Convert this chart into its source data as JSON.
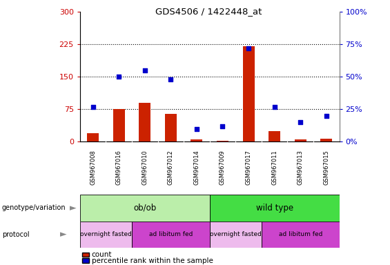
{
  "title": "GDS4506 / 1422448_at",
  "samples": [
    "GSM967008",
    "GSM967016",
    "GSM967010",
    "GSM967012",
    "GSM967014",
    "GSM967009",
    "GSM967017",
    "GSM967011",
    "GSM967013",
    "GSM967015"
  ],
  "counts": [
    20,
    75,
    90,
    65,
    5,
    3,
    220,
    25,
    5,
    7
  ],
  "percentiles": [
    27,
    50,
    55,
    48,
    10,
    12,
    72,
    27,
    15,
    20
  ],
  "left_ylim": [
    0,
    300
  ],
  "right_ylim": [
    0,
    100
  ],
  "left_yticks": [
    0,
    75,
    150,
    225,
    300
  ],
  "right_yticks": [
    0,
    25,
    50,
    75,
    100
  ],
  "right_yticklabels": [
    "0%",
    "25%",
    "50%",
    "75%",
    "100%"
  ],
  "left_color": "#cc0000",
  "right_color": "#0000cc",
  "bar_color": "#cc2200",
  "dot_color": "#0000cc",
  "genotype_groups": [
    {
      "label": "ob/ob",
      "start": 0,
      "end": 5,
      "color": "#bbeeaa"
    },
    {
      "label": "wild type",
      "start": 5,
      "end": 10,
      "color": "#44dd44"
    }
  ],
  "protocol_groups": [
    {
      "label": "overnight fasted",
      "start": 0,
      "end": 2,
      "color": "#eebbed"
    },
    {
      "label": "ad libitum fed",
      "start": 2,
      "end": 5,
      "color": "#cc44cc"
    },
    {
      "label": "overnight fasted",
      "start": 5,
      "end": 7,
      "color": "#eebbed"
    },
    {
      "label": "ad libitum fed",
      "start": 7,
      "end": 10,
      "color": "#cc44cc"
    }
  ],
  "legend_items": [
    {
      "label": "count",
      "color": "#cc2200"
    },
    {
      "label": "percentile rank within the sample",
      "color": "#0000cc"
    }
  ],
  "bg_color": "#ffffff",
  "plot_bg": "#ffffff",
  "sample_row_bg": "#cccccc",
  "grid_dotted_color": "#000000"
}
